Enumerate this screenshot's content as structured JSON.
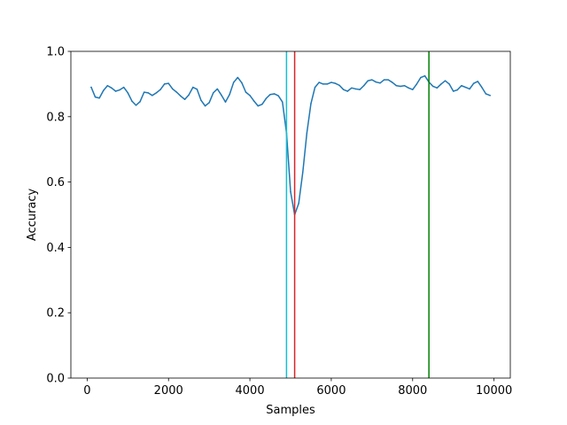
{
  "chart_data": {
    "type": "line",
    "title": "",
    "xlabel": "Samples",
    "ylabel": "Accuracy",
    "xlim": [
      -400,
      10400
    ],
    "ylim": [
      0.0,
      1.0
    ],
    "grid": false,
    "x_ticks": [
      0,
      2000,
      4000,
      6000,
      8000,
      10000
    ],
    "x_tick_labels": [
      "0",
      "2000",
      "4000",
      "6000",
      "8000",
      "10000"
    ],
    "y_ticks": [
      0.0,
      0.2,
      0.4,
      0.6,
      0.8,
      1.0
    ],
    "y_tick_labels": [
      "0.0",
      "0.2",
      "0.4",
      "0.6",
      "0.8",
      "1.0"
    ],
    "series": [
      {
        "color": "#1f77b4",
        "x": [
          100,
          200,
          300,
          400,
          500,
          600,
          700,
          800,
          900,
          1000,
          1100,
          1200,
          1300,
          1400,
          1500,
          1600,
          1700,
          1800,
          1900,
          2000,
          2100,
          2200,
          2300,
          2400,
          2500,
          2600,
          2700,
          2800,
          2900,
          3000,
          3100,
          3200,
          3300,
          3400,
          3500,
          3600,
          3700,
          3800,
          3900,
          4000,
          4100,
          4200,
          4300,
          4400,
          4500,
          4600,
          4700,
          4800,
          4900,
          5000,
          5100,
          5200,
          5300,
          5400,
          5500,
          5600,
          5700,
          5800,
          5900,
          6000,
          6100,
          6200,
          6300,
          6400,
          6500,
          6600,
          6700,
          6800,
          6900,
          7000,
          7100,
          7200,
          7300,
          7400,
          7500,
          7600,
          7700,
          7800,
          7900,
          8000,
          8100,
          8200,
          8300,
          8400,
          8500,
          8600,
          8700,
          8800,
          8900,
          9000,
          9100,
          9200,
          9300,
          9400,
          9500,
          9600,
          9700,
          9800,
          9900
        ],
        "y": [
          0.89,
          0.86,
          0.857,
          0.88,
          0.895,
          0.888,
          0.878,
          0.882,
          0.89,
          0.873,
          0.848,
          0.835,
          0.846,
          0.875,
          0.873,
          0.865,
          0.873,
          0.883,
          0.9,
          0.902,
          0.885,
          0.875,
          0.863,
          0.853,
          0.867,
          0.89,
          0.884,
          0.85,
          0.833,
          0.843,
          0.873,
          0.885,
          0.866,
          0.845,
          0.868,
          0.905,
          0.92,
          0.904,
          0.875,
          0.865,
          0.848,
          0.833,
          0.838,
          0.856,
          0.868,
          0.87,
          0.864,
          0.845,
          0.75,
          0.57,
          0.5,
          0.535,
          0.63,
          0.75,
          0.84,
          0.89,
          0.905,
          0.9,
          0.9,
          0.905,
          0.902,
          0.896,
          0.883,
          0.878,
          0.888,
          0.885,
          0.883,
          0.895,
          0.91,
          0.913,
          0.906,
          0.903,
          0.913,
          0.913,
          0.905,
          0.895,
          0.893,
          0.895,
          0.888,
          0.883,
          0.9,
          0.92,
          0.925,
          0.906,
          0.893,
          0.888,
          0.9,
          0.91,
          0.9,
          0.878,
          0.882,
          0.895,
          0.89,
          0.885,
          0.902,
          0.908,
          0.89,
          0.87,
          0.865
        ]
      }
    ],
    "vlines": [
      {
        "x": 4900,
        "color": "#17becf"
      },
      {
        "x": 5100,
        "color": "#d62728"
      },
      {
        "x": 8400,
        "color": "#008000"
      }
    ]
  }
}
